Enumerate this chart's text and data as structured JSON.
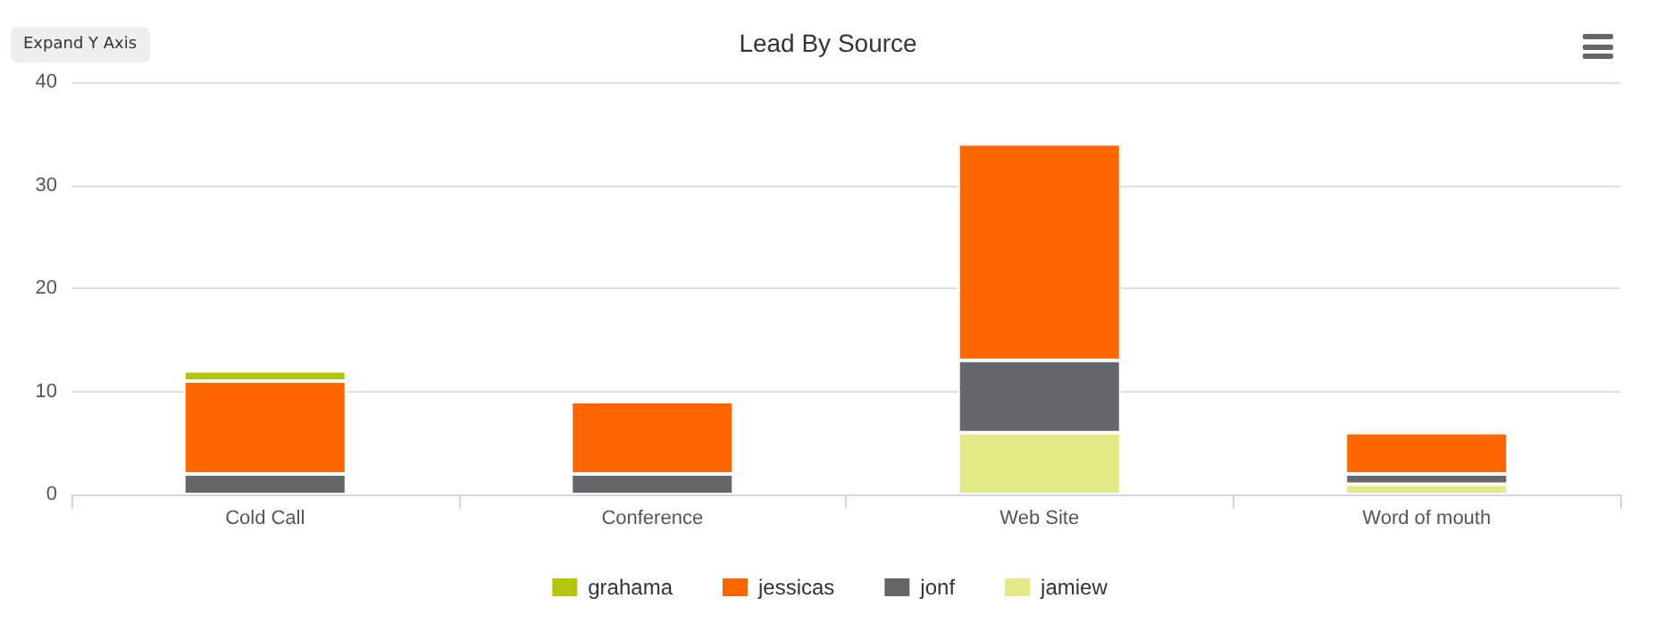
{
  "chart_data": {
    "type": "bar",
    "title": "Lead By Source",
    "stacked": true,
    "categories": [
      "Cold Call",
      "Conference",
      "Web Site",
      "Word of mouth"
    ],
    "series": [
      {
        "name": "jamiew",
        "color": "#e2e986",
        "values": [
          0,
          0,
          6,
          1
        ]
      },
      {
        "name": "jonf",
        "color": "#66666b",
        "values": [
          2,
          2,
          7,
          1
        ]
      },
      {
        "name": "jessicas",
        "color": "#ff6600",
        "values": [
          9,
          7,
          21,
          4
        ]
      },
      {
        "name": "grahama",
        "color": "#b5c40e",
        "values": [
          1,
          0,
          0,
          0
        ]
      }
    ],
    "ylim": [
      0,
      40
    ],
    "yticks": [
      0,
      10,
      20,
      30,
      40
    ],
    "grid": "y",
    "legend": "bottom",
    "annotations": [
      "Expand Y Axis"
    ]
  }
}
